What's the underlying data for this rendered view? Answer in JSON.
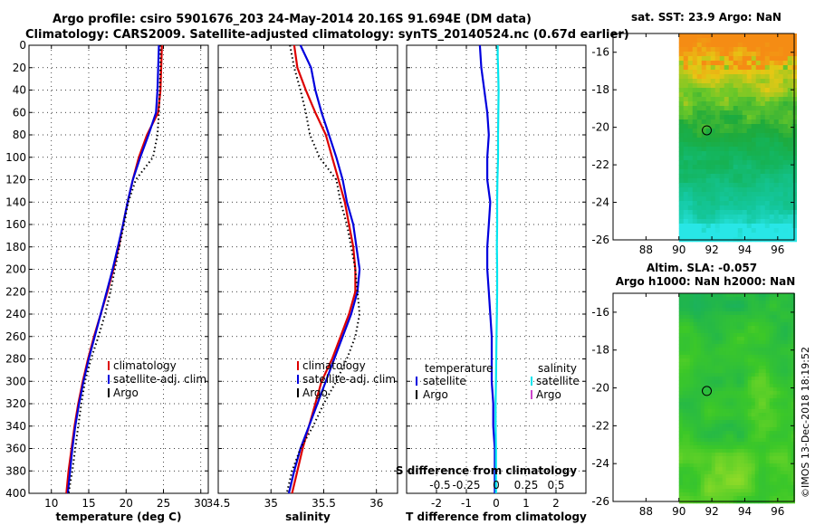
{
  "header": {
    "line1": "Argo profile: csiro 5901676_203 24-May-2014 20.16S 91.694E (DM data)",
    "line2": "Climatology: CARS2009. Satellite-adjusted climatology: synTS_20140524.nc (0.67d earlier)"
  },
  "footer": {
    "credit": "©IMOS 13-Dec-2018 18:19:52"
  },
  "colors": {
    "red": "#dd0000",
    "blue": "#0000dd",
    "black": "#000000",
    "cyan": "#00e5ee",
    "magenta": "#cc44cc"
  },
  "chart_data": [
    {
      "type": "line",
      "id": "temperature",
      "xlabel": "temperature (deg C)",
      "ylabel": "",
      "xlim": [
        7,
        31
      ],
      "ylim": [
        0,
        400
      ],
      "xticks": [
        10,
        15,
        20,
        25,
        30
      ],
      "yticks": [
        0,
        20,
        40,
        60,
        80,
        100,
        120,
        140,
        160,
        180,
        200,
        220,
        240,
        260,
        280,
        300,
        320,
        340,
        360,
        380,
        400
      ],
      "grid": true,
      "legend": {
        "position": "lower-right",
        "entries": [
          "climatology",
          "satellite-adj. clim.",
          "Argo"
        ]
      },
      "series": [
        {
          "name": "climatology",
          "color": "red",
          "style": "solid",
          "depth": [
            0,
            20,
            40,
            60,
            80,
            100,
            120,
            140,
            160,
            180,
            200,
            220,
            240,
            260,
            280,
            300,
            320,
            340,
            360,
            380,
            400
          ],
          "values": [
            24.8,
            24.7,
            24.6,
            24.3,
            22.8,
            21.7,
            20.9,
            20.2,
            19.6,
            19.0,
            18.3,
            17.5,
            16.6,
            15.7,
            14.9,
            14.2,
            13.6,
            13.1,
            12.7,
            12.3,
            12.0
          ]
        },
        {
          "name": "satellite-adj. clim.",
          "color": "blue",
          "style": "solid",
          "depth": [
            0,
            20,
            40,
            60,
            80,
            100,
            120,
            140,
            160,
            180,
            200,
            220,
            240,
            260,
            280,
            300,
            320,
            340,
            360,
            380,
            400
          ],
          "values": [
            24.4,
            24.3,
            24.2,
            24.0,
            23.0,
            21.9,
            20.9,
            20.2,
            19.6,
            18.9,
            18.2,
            17.4,
            16.6,
            15.8,
            15.0,
            14.3,
            13.7,
            13.2,
            12.8,
            12.5,
            12.2
          ]
        },
        {
          "name": "Argo",
          "color": "black",
          "style": "dotted",
          "depth": [
            0,
            20,
            40,
            60,
            80,
            100,
            120,
            140,
            160,
            180,
            200,
            220,
            240,
            260,
            280,
            300,
            320,
            340,
            360,
            380,
            400
          ],
          "values": [
            24.6,
            24.6,
            24.5,
            24.4,
            24.2,
            23.6,
            21.3,
            20.3,
            19.7,
            19.1,
            18.5,
            17.9,
            17.2,
            16.3,
            15.3,
            14.5,
            14.0,
            13.6,
            13.2,
            12.8,
            12.3
          ]
        }
      ]
    },
    {
      "type": "line",
      "id": "salinity",
      "xlabel": "salinity",
      "xlim": [
        34.5,
        36.2
      ],
      "ylim": [
        0,
        400
      ],
      "xticks": [
        34.5,
        35,
        35.5,
        36
      ],
      "grid": true,
      "legend": {
        "position": "lower-right",
        "entries": [
          "climatology",
          "satellite-adj. clim.",
          "Argo"
        ]
      },
      "series": [
        {
          "name": "climatology",
          "color": "red",
          "style": "solid",
          "depth": [
            0,
            20,
            40,
            60,
            80,
            100,
            120,
            140,
            160,
            180,
            200,
            220,
            240,
            260,
            280,
            300,
            320,
            340,
            360,
            380,
            400
          ],
          "values": [
            35.22,
            35.25,
            35.33,
            35.42,
            35.52,
            35.58,
            35.64,
            35.7,
            35.74,
            35.78,
            35.8,
            35.8,
            35.74,
            35.66,
            35.58,
            35.48,
            35.42,
            35.36,
            35.3,
            35.25,
            35.2
          ]
        },
        {
          "name": "satellite-adj. clim.",
          "color": "blue",
          "style": "solid",
          "depth": [
            0,
            20,
            40,
            60,
            80,
            100,
            120,
            140,
            160,
            180,
            200,
            220,
            240,
            260,
            280,
            300,
            320,
            340,
            360,
            380,
            400
          ],
          "values": [
            35.28,
            35.38,
            35.42,
            35.48,
            35.55,
            35.62,
            35.68,
            35.72,
            35.78,
            35.81,
            35.84,
            35.82,
            35.76,
            35.68,
            35.6,
            35.52,
            35.44,
            35.36,
            35.28,
            35.22,
            35.17
          ]
        },
        {
          "name": "Argo",
          "color": "black",
          "style": "dotted",
          "depth": [
            0,
            20,
            40,
            60,
            80,
            100,
            120,
            140,
            160,
            180,
            200,
            220,
            240,
            260,
            280,
            300,
            320,
            340,
            360,
            380,
            400
          ],
          "values": [
            35.18,
            35.22,
            35.28,
            35.33,
            35.37,
            35.46,
            35.62,
            35.66,
            35.72,
            35.76,
            35.8,
            35.82,
            35.84,
            35.8,
            35.72,
            35.62,
            35.5,
            35.4,
            35.28,
            35.2,
            35.15
          ]
        }
      ]
    },
    {
      "type": "line",
      "id": "difference",
      "xlabel": "T difference from climatology",
      "xlabel_top": "S difference from climatology",
      "xlim": [
        -3,
        3
      ],
      "ylim": [
        0,
        400
      ],
      "xticks": [
        -2,
        -1,
        0,
        1,
        2
      ],
      "xtick_labels": [
        "-2",
        "-1",
        "0",
        "1",
        "2"
      ],
      "s_xtick_labels": [
        "-0.5",
        "-0.25",
        "0",
        "0.25",
        "0.5"
      ],
      "grid": true,
      "legend_temperature": {
        "title": "temperature",
        "entries": [
          "satellite",
          "Argo"
        ]
      },
      "legend_salinity": {
        "title": "salinity",
        "entries": [
          "satellite",
          "Argo"
        ]
      },
      "series": [
        {
          "name": "temperature satellite",
          "color": "blue",
          "style": "solid",
          "depth": [
            0,
            20,
            40,
            60,
            80,
            100,
            120,
            140,
            160,
            180,
            200,
            220,
            240,
            260,
            280,
            300,
            320,
            340,
            360,
            380,
            400
          ],
          "values": [
            -0.55,
            -0.5,
            -0.4,
            -0.3,
            -0.25,
            -0.3,
            -0.3,
            -0.2,
            -0.25,
            -0.3,
            -0.3,
            -0.25,
            -0.2,
            -0.15,
            -0.15,
            -0.15,
            -0.1,
            -0.1,
            -0.05,
            -0.05,
            -0.05
          ]
        },
        {
          "name": "salinity satellite",
          "color": "cyan",
          "style": "solid",
          "depth": [
            0,
            5,
            10,
            20,
            40,
            60,
            80,
            100,
            120,
            140,
            160,
            180,
            200,
            220,
            240,
            260,
            280,
            300,
            320,
            340,
            360,
            380,
            400
          ],
          "values": [
            0.05,
            0.05,
            0.05,
            0.06,
            0.08,
            0.07,
            0.06,
            0.06,
            0.04,
            0.03,
            0.03,
            0.02,
            0.03,
            0.03,
            0.02,
            0.01,
            0.0,
            -0.01,
            -0.02,
            -0.02,
            -0.01,
            -0.01,
            -0.01
          ]
        }
      ]
    },
    {
      "type": "heatmap",
      "id": "sst-map",
      "title": "sat. SST: 23.9  Argo: NaN",
      "xlim": [
        86,
        97
      ],
      "ylim": [
        -26,
        -15
      ],
      "xticks": [
        88,
        90,
        92,
        94,
        96
      ],
      "yticks": [
        -16,
        -18,
        -20,
        -22,
        -24,
        -26
      ],
      "argo_position": {
        "lon": 91.694,
        "lat": -20.16
      },
      "data_lon_min": 90.0
    },
    {
      "type": "heatmap",
      "id": "sla-map",
      "title": "Altim. SLA: -0.057",
      "subtitle": "Argo h1000: NaN h2000: NaN",
      "xlim": [
        86,
        97
      ],
      "ylim": [
        -26,
        -15
      ],
      "xticks": [
        88,
        90,
        92,
        94,
        96
      ],
      "yticks": [
        -16,
        -18,
        -20,
        -22,
        -24,
        -26
      ],
      "argo_position": {
        "lon": 91.694,
        "lat": -20.16
      },
      "data_lon_min": 90.0
    }
  ]
}
